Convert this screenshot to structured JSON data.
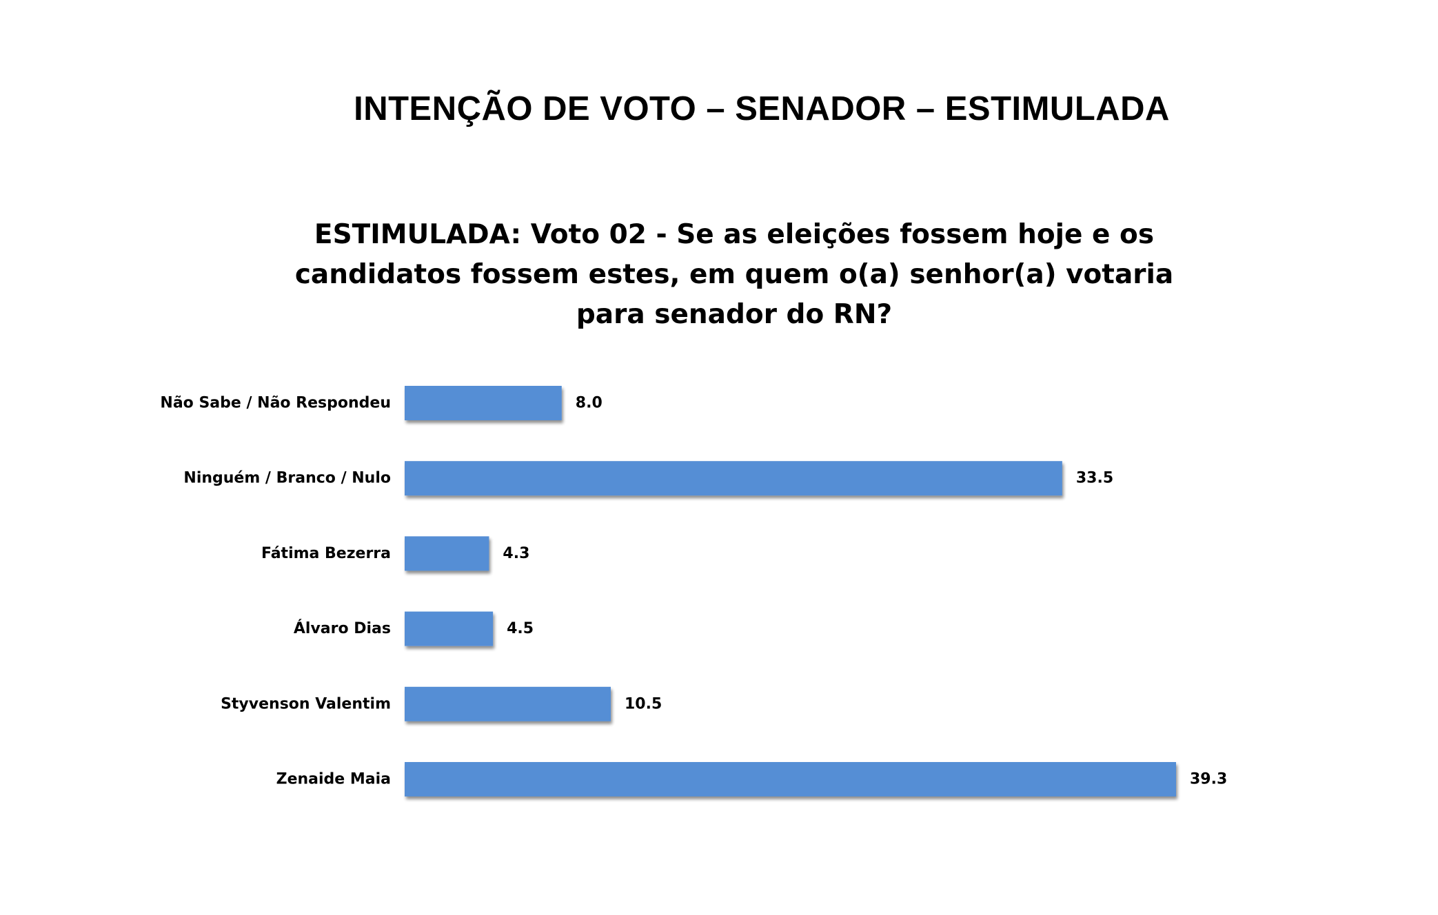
{
  "page": {
    "title": "INTENÇÃO DE VOTO – SENADOR – ESTIMULADA"
  },
  "chart_data": {
    "type": "bar",
    "orientation": "horizontal",
    "title": "ESTIMULADA: Voto 02 - Se as eleições fossem hoje e os candidatos fossem estes, em quem o(a) senhor(a) votaria para senador do RN?",
    "categories": [
      "Não Sabe / Não Respondeu",
      "Ninguém / Branco / Nulo",
      "Fátima Bezerra",
      "Álvaro Dias",
      "Styvenson Valentim",
      "Zenaide Maia"
    ],
    "values": [
      8.0,
      33.5,
      4.3,
      4.5,
      10.5,
      39.3
    ],
    "value_labels": [
      "8.0",
      "33.5",
      "4.3",
      "4.5",
      "10.5",
      "39.3"
    ],
    "xlim": [
      0,
      39.3
    ],
    "grid": false,
    "axis_visible": false,
    "legend": "none",
    "bar_color": "#558ED5"
  }
}
